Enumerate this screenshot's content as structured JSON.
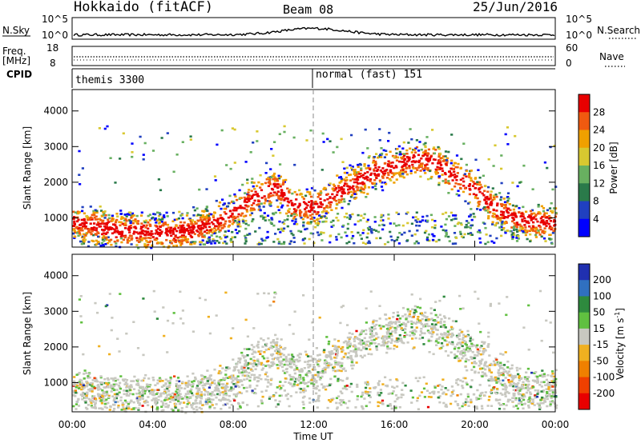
{
  "header": {
    "title": "Hokkaido (fitACF)",
    "beam": "Beam 08",
    "date": "25/Jun/2016"
  },
  "sky_panel": {
    "left_label": "N.Sky",
    "right_label": "N.Search",
    "left_ticks": [
      "10^5",
      "10^0"
    ],
    "right_ticks": [
      "10^5",
      "10^0"
    ]
  },
  "freq_panel": {
    "left_label_1": "Freq.",
    "left_label_2": "[MHz]",
    "right_label": "Nave",
    "left_ticks": [
      "18",
      "8"
    ],
    "right_ticks": [
      "60",
      "0"
    ]
  },
  "cpid": {
    "label": "CPID",
    "segments": [
      {
        "name": "themis 3300",
        "start_hour": 0,
        "end_hour": 11.92
      },
      {
        "name": "normal (fast) 151",
        "start_hour": 11.92,
        "end_hour": 24
      }
    ]
  },
  "chart_data": [
    {
      "type": "heatmap",
      "quantity": "power",
      "ylabel": "Slant Range [km]",
      "ylim": [
        180,
        4600
      ],
      "yticks": [
        "1000",
        "2000",
        "3000",
        "4000"
      ],
      "xlim": [
        0,
        24
      ],
      "colorbar": {
        "label": "Power [dB]",
        "tick_labels": [
          "4",
          "8",
          "12",
          "16",
          "20",
          "24",
          "28"
        ],
        "colors": [
          "#0000ff",
          "#2040c0",
          "#2a7a4a",
          "#68b060",
          "#d8c830",
          "#f0a000",
          "#f05a10",
          "#e80000"
        ]
      },
      "echo_bands": [
        {
          "x": [
            0,
            1,
            2,
            3,
            4,
            5,
            6,
            7,
            8,
            9,
            10,
            11,
            12,
            13,
            14,
            15,
            16,
            17,
            18,
            19,
            20,
            21,
            22,
            23,
            24
          ],
          "y": [
            900,
            800,
            700,
            650,
            600,
            600,
            700,
            900,
            1200,
            1600,
            1900,
            1400,
            1300,
            1700,
            2000,
            2300,
            2500,
            2700,
            2600,
            2200,
            1800,
            1300,
            1000,
            900,
            900
          ]
        }
      ]
    },
    {
      "type": "heatmap",
      "quantity": "velocity",
      "ylabel": "Slant Range [km]",
      "xlabel": "Time UT",
      "ylim": [
        180,
        4600
      ],
      "yticks": [
        "1000",
        "2000",
        "3000",
        "4000"
      ],
      "xticks": [
        "00:00",
        "04:00",
        "08:00",
        "12:00",
        "16:00",
        "20:00",
        "00:00"
      ],
      "xlim": [
        0,
        24
      ],
      "colorbar": {
        "label": "Velocity [m s",
        "label_sup": "-1",
        "label_end": "]",
        "tick_labels": [
          "200",
          "100",
          "50",
          "15",
          "-15",
          "-50",
          "-100",
          "-200"
        ],
        "colors": [
          "#2030b0",
          "#3070c0",
          "#2e8a3e",
          "#60c040",
          "#c8c8c0",
          "#f0b020",
          "#f08000",
          "#f04000",
          "#e80000"
        ]
      }
    }
  ],
  "colors": {
    "power_high": "#e80000",
    "velocity_ground": "#c8c8c0"
  }
}
